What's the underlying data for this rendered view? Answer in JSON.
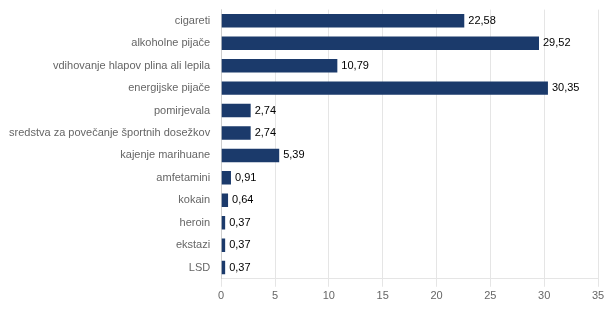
{
  "chart_data": {
    "type": "bar",
    "orientation": "horizontal",
    "categories": [
      "cigareti",
      "alkoholne pijače",
      "vdihovanje hlapov plina ali lepila",
      "energijske pijače",
      "pomirjevala",
      "sredstva za povečanje športnih dosežkov",
      "kajenje marihuane",
      "amfetamini",
      "kokain",
      "heroin",
      "ekstazi",
      "LSD"
    ],
    "values": [
      22.58,
      29.52,
      10.79,
      30.35,
      2.74,
      2.74,
      5.39,
      0.91,
      0.64,
      0.37,
      0.37,
      0.37
    ],
    "value_labels": [
      "22,58",
      "29,52",
      "10,79",
      "30,35",
      "2,74",
      "2,74",
      "5,39",
      "0,91",
      "0,64",
      "0,37",
      "0,37",
      "0,37"
    ],
    "data_labels": true,
    "color": "#1B3A6B",
    "xlim": [
      0,
      35
    ],
    "xticks": [
      0,
      5,
      10,
      15,
      20,
      25,
      30,
      35
    ],
    "grid": "x"
  }
}
